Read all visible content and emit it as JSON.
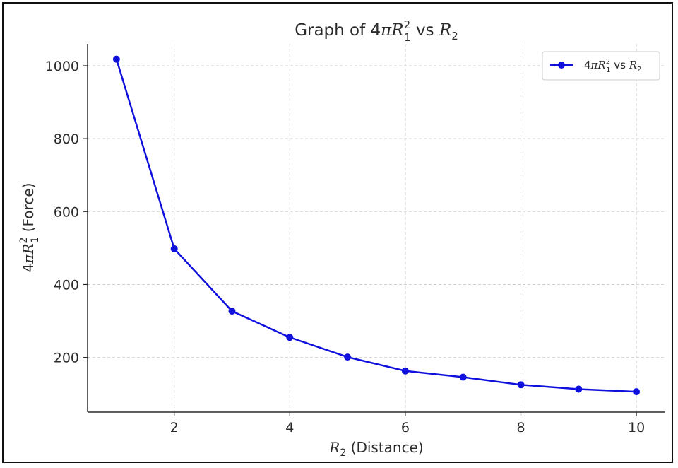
{
  "chart_data": {
    "type": "line",
    "title": {
      "prefix": "Graph of 4",
      "pi": "π",
      "R": "R",
      "sup": "2",
      "sub": "1",
      "mid": " vs ",
      "R2": "R",
      "R2sub": "2"
    },
    "xlabel": {
      "R": "R",
      "sub": "2",
      "rest": " (Distance)"
    },
    "ylabel": {
      "prefix": "4",
      "pi": "π",
      "R": "R",
      "sup": "2",
      "sub": "1",
      "rest": " (Force)"
    },
    "legend": {
      "prefix": "4",
      "pi": "π",
      "R": "R",
      "sup": "2",
      "sub": "1",
      "mid": " vs ",
      "R2": "R",
      "R2sub": "2",
      "placement": "top-right"
    },
    "xlim": [
      0.5,
      10.5
    ],
    "ylim": [
      50,
      1060
    ],
    "x_ticks": [
      2,
      4,
      6,
      8,
      10
    ],
    "y_ticks": [
      200,
      400,
      600,
      800,
      1000
    ],
    "grid": true,
    "color": "#1010dd",
    "series": [
      {
        "x": [
          1,
          2,
          3,
          4,
          5,
          6,
          7,
          8,
          9,
          10
        ],
        "y": [
          1018,
          498,
          327,
          255,
          201,
          163,
          146,
          125,
          113,
          106
        ]
      }
    ]
  }
}
